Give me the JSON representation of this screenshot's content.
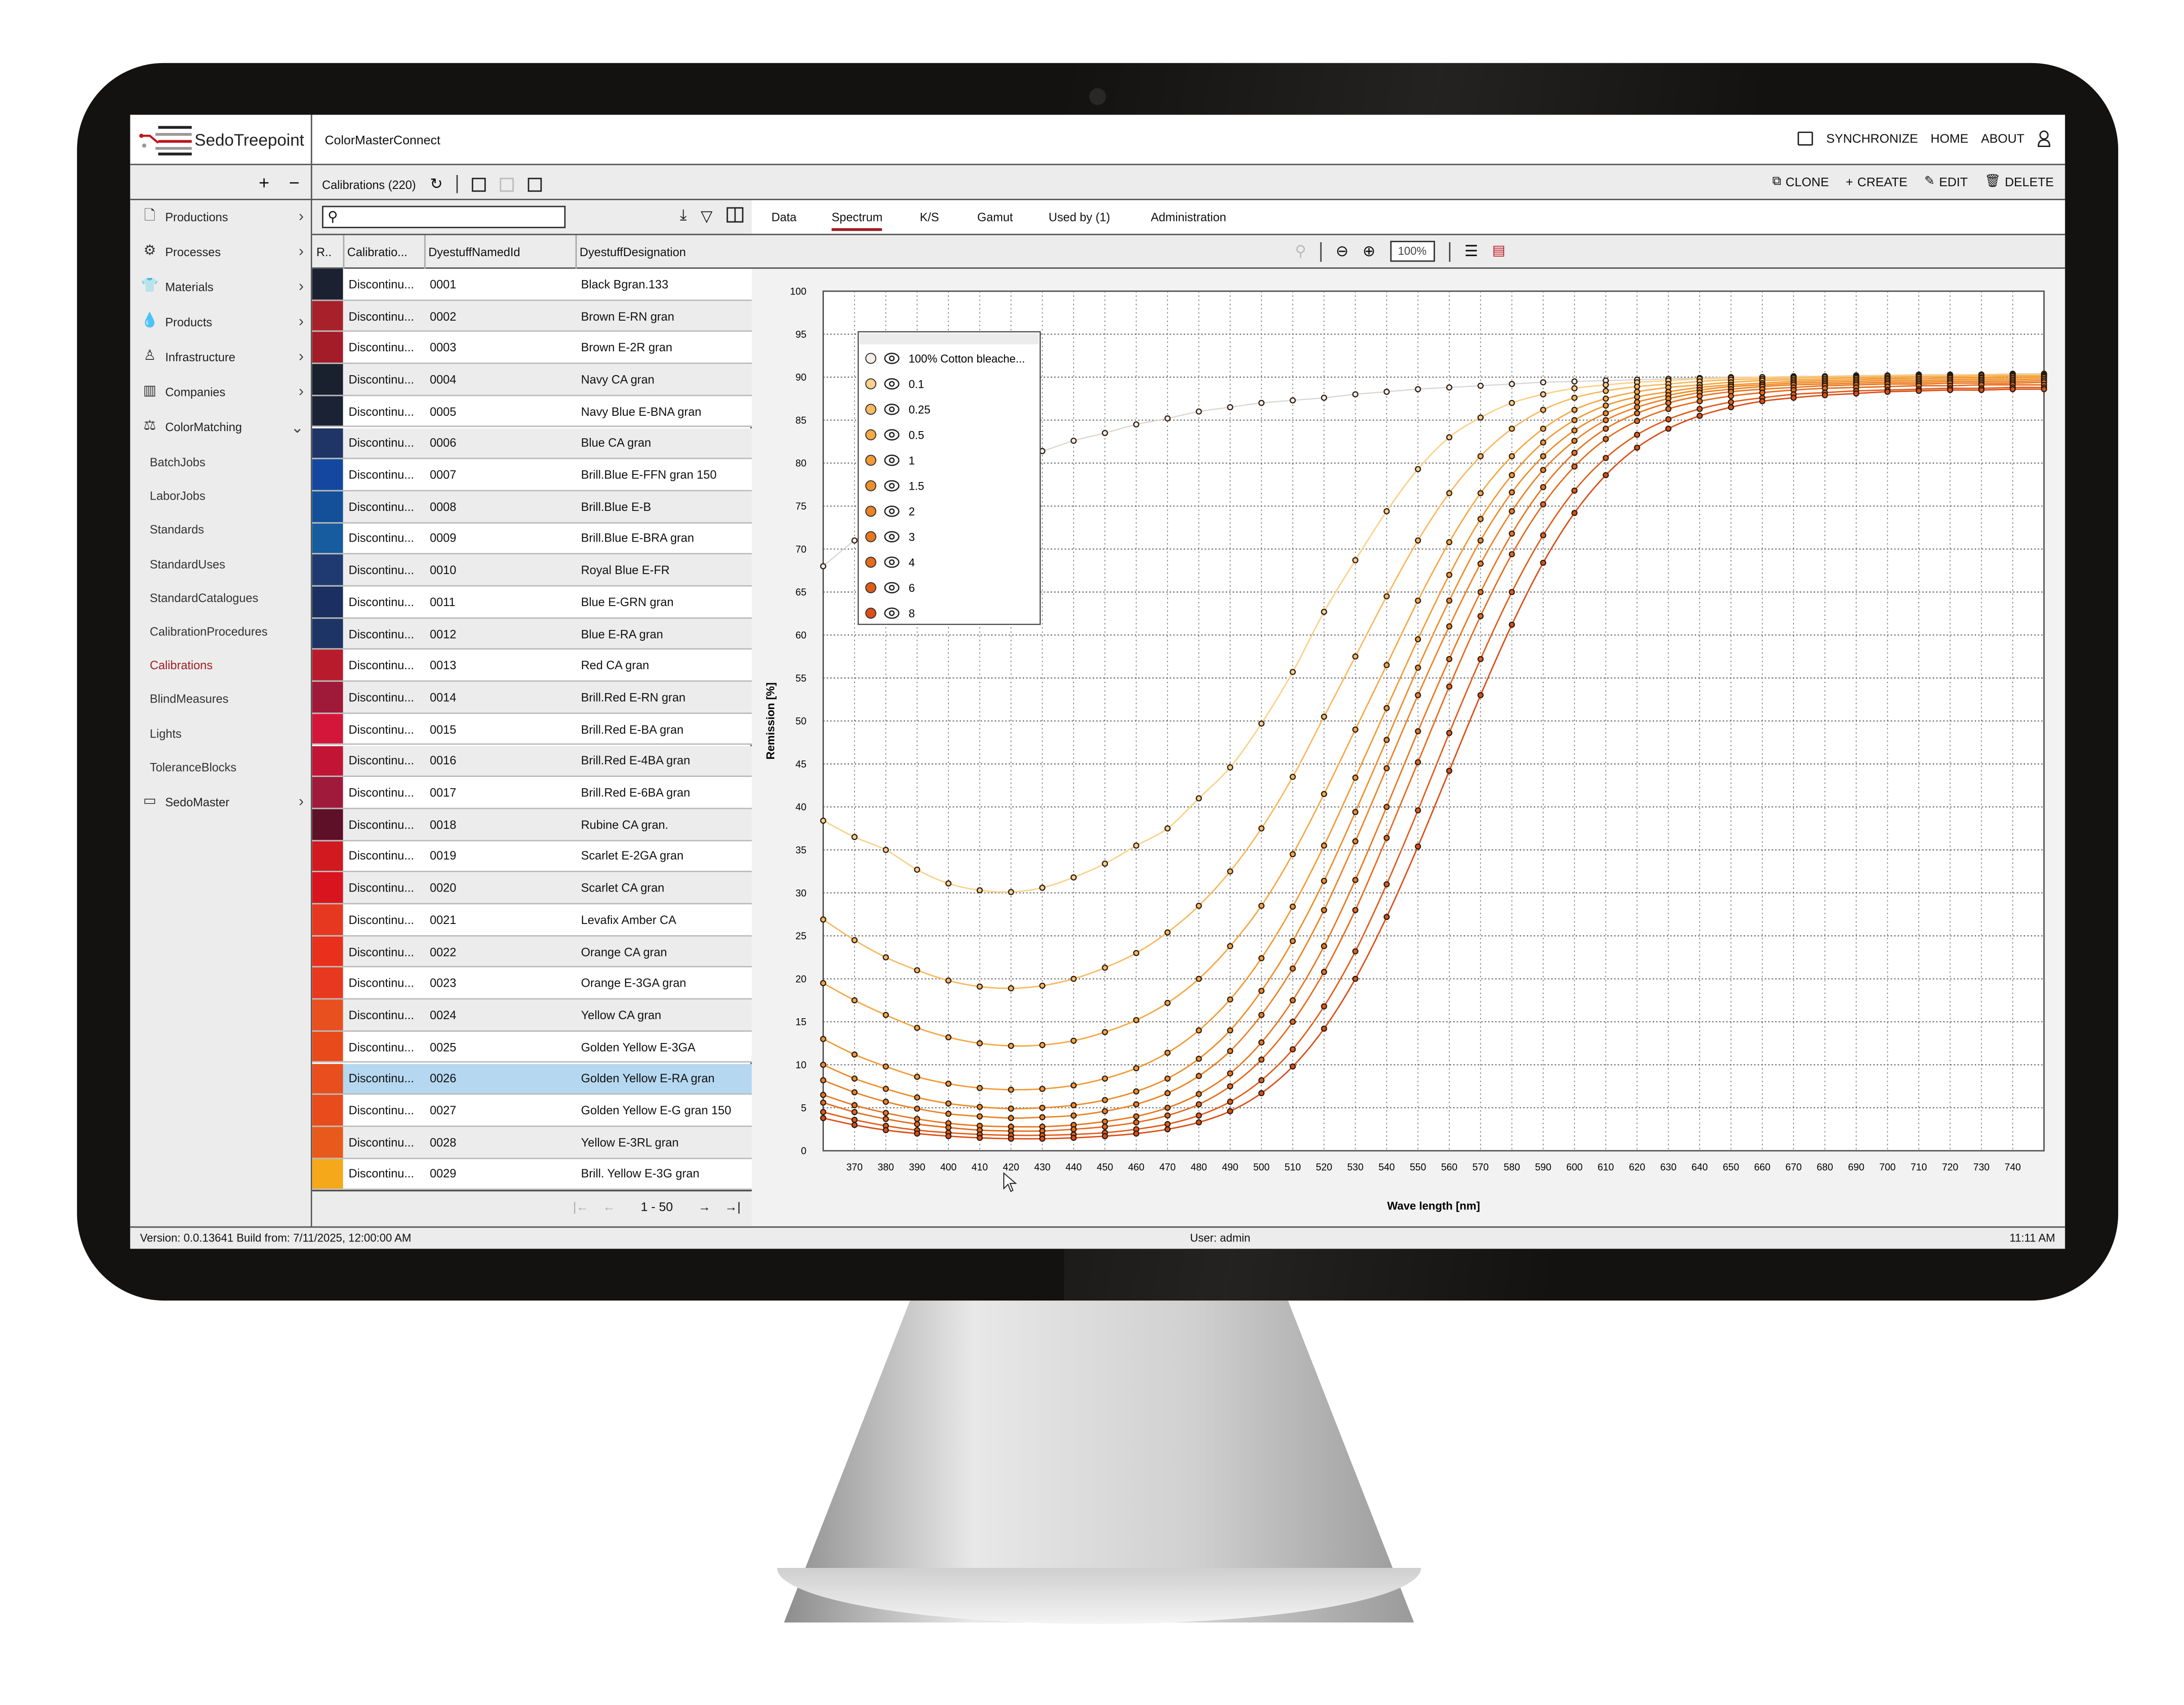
{
  "app": {
    "logo_text": "SedoTreepoint",
    "title": "ColorMasterConnect"
  },
  "header": {
    "synchronize": "SYNCHRONIZE",
    "home": "HOME",
    "about": "ABOUT"
  },
  "toolbar": {
    "list_title": "Calibrations (220)",
    "clone": "CLONE",
    "create": "CREATE",
    "edit": "EDIT",
    "delete": "DELETE"
  },
  "sidebar": {
    "items": [
      {
        "label": "Productions",
        "icon": "document-icon"
      },
      {
        "label": "Processes",
        "icon": "gear-icon"
      },
      {
        "label": "Materials",
        "icon": "shirt-icon"
      },
      {
        "label": "Products",
        "icon": "drop-icon"
      },
      {
        "label": "Infrastructure",
        "icon": "person-icon"
      },
      {
        "label": "Companies",
        "icon": "factory-icon"
      },
      {
        "label": "ColorMatching",
        "icon": "color-matching-icon",
        "expanded": true
      }
    ],
    "subitems": [
      "BatchJobs",
      "LaborJobs",
      "Standards",
      "StandardUses",
      "StandardCatalogues",
      "CalibrationProcedures",
      "Calibrations",
      "BlindMeasures",
      "Lights",
      "ToleranceBlocks"
    ],
    "active_subitem": "Calibrations",
    "last_item": {
      "label": "SedoMaster",
      "icon": "box-icon"
    }
  },
  "list": {
    "search_placeholder": "",
    "columns": [
      "R..",
      "Calibratio...",
      "DyestuffNamedId",
      "DyestuffDesignation"
    ],
    "rows": [
      {
        "status": "Discontinu...",
        "id": "0001",
        "designation": "Black Bgran.133",
        "color": "#1b2130"
      },
      {
        "status": "Discontinu...",
        "id": "0002",
        "designation": "Brown E-RN gran",
        "color": "#a8202a"
      },
      {
        "status": "Discontinu...",
        "id": "0003",
        "designation": "Brown E-2R gran",
        "color": "#a31c28"
      },
      {
        "status": "Discontinu...",
        "id": "0004",
        "designation": "Navy CA gran",
        "color": "#19202e"
      },
      {
        "status": "Discontinu...",
        "id": "0005",
        "designation": "Navy Blue E-BNA gran",
        "color": "#1a2233"
      },
      {
        "status": "Discontinu...",
        "id": "0006",
        "designation": "Blue CA gran",
        "color": "#1f3566"
      },
      {
        "status": "Discontinu...",
        "id": "0007",
        "designation": "Brill.Blue E-FFN gran 150",
        "color": "#1448a0"
      },
      {
        "status": "Discontinu...",
        "id": "0008",
        "designation": "Brill.Blue E-B",
        "color": "#14509a"
      },
      {
        "status": "Discontinu...",
        "id": "0009",
        "designation": "Brill.Blue E-BRA gran",
        "color": "#165c9e"
      },
      {
        "status": "Discontinu...",
        "id": "0010",
        "designation": "Royal Blue E-FR",
        "color": "#1f3a70"
      },
      {
        "status": "Discontinu...",
        "id": "0011",
        "designation": "Blue E-GRN gran",
        "color": "#1b3060"
      },
      {
        "status": "Discontinu...",
        "id": "0012",
        "designation": "Blue E-RA gran",
        "color": "#1c3565"
      },
      {
        "status": "Discontinu...",
        "id": "0013",
        "designation": "Red CA gran",
        "color": "#b81c2c"
      },
      {
        "status": "Discontinu...",
        "id": "0014",
        "designation": "Brill.Red E-RN gran",
        "color": "#9e1a38"
      },
      {
        "status": "Discontinu...",
        "id": "0015",
        "designation": "Brill.Red E-BA gran",
        "color": "#d4163a"
      },
      {
        "status": "Discontinu...",
        "id": "0016",
        "designation": "Brill.Red E-4BA gran",
        "color": "#c21434"
      },
      {
        "status": "Discontinu...",
        "id": "0017",
        "designation": "Brill.Red E-6BA gran",
        "color": "#a01a3c"
      },
      {
        "status": "Discontinu...",
        "id": "0018",
        "designation": "Rubine CA gran.",
        "color": "#5e1028"
      },
      {
        "status": "Discontinu...",
        "id": "0019",
        "designation": "Scarlet E-2GA gran",
        "color": "#d01a20"
      },
      {
        "status": "Discontinu...",
        "id": "0020",
        "designation": "Scarlet CA gran",
        "color": "#d8141e"
      },
      {
        "status": "Discontinu...",
        "id": "0021",
        "designation": "Levafix Amber CA",
        "color": "#e63820"
      },
      {
        "status": "Discontinu...",
        "id": "0022",
        "designation": "Orange CA gran",
        "color": "#e8301c"
      },
      {
        "status": "Discontinu...",
        "id": "0023",
        "designation": "Orange E-3GA gran",
        "color": "#e83820"
      },
      {
        "status": "Discontinu...",
        "id": "0024",
        "designation": "Yellow CA gran",
        "color": "#e85020"
      },
      {
        "status": "Discontinu...",
        "id": "0025",
        "designation": "Golden Yellow E-3GA",
        "color": "#e84a1c"
      },
      {
        "status": "Discontinu...",
        "id": "0026",
        "designation": "Golden Yellow E-RA gran",
        "color": "#e84e1e",
        "selected": true
      },
      {
        "status": "Discontinu...",
        "id": "0027",
        "designation": "Golden Yellow E-G gran 150",
        "color": "#e84c1c"
      },
      {
        "status": "Discontinu...",
        "id": "0028",
        "designation": "Yellow E-3RL gran",
        "color": "#e85a1c"
      },
      {
        "status": "Discontinu...",
        "id": "0029",
        "designation": "Brill. Yellow  E-3G gran",
        "color": "#f5a81a"
      }
    ],
    "pager": "1 - 50"
  },
  "detail": {
    "tabs": [
      "Data",
      "Spectrum",
      "K/S",
      "Gamut",
      "Used by  (1)",
      "Administration"
    ],
    "active_tab": "Spectrum",
    "zoom": "100%"
  },
  "status": {
    "version": "Version: 0.0.13641   Build from: 7/11/2025, 12:00:00 AM",
    "user": "User: admin",
    "time": "11:11 AM"
  },
  "colors": {
    "accent": "#a01c24",
    "selected_row": "#b5d8f0"
  },
  "chart_data": {
    "type": "line",
    "xlabel": "Wave length [nm]",
    "ylabel": "Remission [%]",
    "xlim": [
      360,
      750
    ],
    "ylim": [
      0,
      100
    ],
    "grid": true,
    "legend_placement": "top-left",
    "x_ticks": [
      370,
      380,
      390,
      400,
      410,
      420,
      430,
      440,
      450,
      460,
      470,
      480,
      490,
      500,
      510,
      520,
      530,
      540,
      550,
      560,
      570,
      580,
      590,
      600,
      610,
      620,
      630,
      640,
      650,
      660,
      670,
      680,
      690,
      700,
      710,
      720,
      730,
      740
    ],
    "y_ticks": [
      0,
      5,
      10,
      15,
      20,
      25,
      30,
      35,
      40,
      45,
      50,
      55,
      60,
      65,
      70,
      75,
      80,
      85,
      90,
      95,
      100
    ],
    "x": [
      360,
      370,
      380,
      390,
      400,
      410,
      420,
      430,
      440,
      450,
      460,
      470,
      480,
      490,
      500,
      510,
      520,
      530,
      540,
      550,
      560,
      570,
      580,
      590,
      600,
      610,
      620,
      630,
      640,
      650,
      660,
      670,
      680,
      690,
      700,
      710,
      720,
      730,
      740,
      750
    ],
    "series": [
      {
        "name": "100% Cotton bleache...",
        "color": "#f3eee9",
        "values": [
          68,
          71,
          73.5,
          76,
          78,
          79.5,
          80.5,
          81.4,
          82.6,
          83.5,
          84.5,
          85.2,
          86,
          86.5,
          87,
          87.3,
          87.6,
          88,
          88.3,
          88.6,
          88.8,
          89,
          89.2,
          89.4,
          89.5,
          89.6,
          89.7,
          89.8,
          89.9,
          90,
          90,
          90.1,
          90.1,
          90.2,
          90.2,
          90.3,
          90.3,
          90.3,
          90.4,
          90.4
        ]
      },
      {
        "name": "0.1",
        "color": "#fcd18a",
        "values": [
          38.4,
          36.5,
          35,
          32.7,
          31.1,
          30.3,
          30.1,
          30.6,
          31.8,
          33.4,
          35.5,
          37.5,
          41,
          44.6,
          49.7,
          55.7,
          62.7,
          68.7,
          74.4,
          79.3,
          83,
          85.3,
          87,
          88,
          88.7,
          89.1,
          89.4,
          89.6,
          89.8,
          89.9,
          90,
          90,
          90.1,
          90.1,
          90.2,
          90.2,
          90.2,
          90.3,
          90.3,
          90.3
        ]
      },
      {
        "name": "0.25",
        "color": "#f8b960",
        "values": [
          26.9,
          24.5,
          22.5,
          21,
          19.8,
          19.1,
          18.9,
          19.2,
          20,
          21.3,
          23,
          25.4,
          28.5,
          32.5,
          37.5,
          43.5,
          50.5,
          57.5,
          64.5,
          71,
          76.5,
          80.8,
          84,
          86.2,
          87.6,
          88.4,
          88.9,
          89.2,
          89.5,
          89.7,
          89.8,
          89.9,
          90,
          90,
          90.1,
          90.1,
          90.1,
          90.2,
          90.2,
          90.2
        ]
      },
      {
        "name": "0.5",
        "color": "#f5a844",
        "values": [
          19.5,
          17.5,
          15.8,
          14.3,
          13.2,
          12.5,
          12.2,
          12.3,
          12.8,
          13.8,
          15.2,
          17.2,
          20,
          23.8,
          28.5,
          34.5,
          41.5,
          49,
          56.5,
          64,
          70.8,
          76.5,
          80.8,
          84,
          86.2,
          87.5,
          88.3,
          88.8,
          89.1,
          89.4,
          89.6,
          89.7,
          89.8,
          89.9,
          89.9,
          90,
          90,
          90,
          90.1,
          90.1
        ]
      },
      {
        "name": "1",
        "color": "#f19a35",
        "values": [
          13,
          11.2,
          9.8,
          8.6,
          7.8,
          7.3,
          7.1,
          7.2,
          7.6,
          8.4,
          9.6,
          11.4,
          14,
          17.6,
          22.4,
          28.4,
          35.5,
          43.4,
          51.5,
          59.5,
          67,
          73.5,
          78.6,
          82.4,
          85,
          86.7,
          87.7,
          88.3,
          88.8,
          89.1,
          89.3,
          89.5,
          89.6,
          89.7,
          89.8,
          89.8,
          89.9,
          89.9,
          89.9,
          90
        ]
      },
      {
        "name": "1.5",
        "color": "#ee8d2a",
        "values": [
          10,
          8.4,
          7.2,
          6.2,
          5.5,
          5.1,
          4.9,
          5,
          5.3,
          5.9,
          6.9,
          8.4,
          10.7,
          14,
          18.6,
          24.4,
          31.4,
          39.4,
          47.8,
          56.2,
          64,
          71,
          76.6,
          80.8,
          83.8,
          85.8,
          87.1,
          87.9,
          88.5,
          88.9,
          89.1,
          89.3,
          89.4,
          89.5,
          89.6,
          89.6,
          89.7,
          89.7,
          89.7,
          89.8
        ]
      },
      {
        "name": "2",
        "color": "#ec8224",
        "values": [
          8.2,
          6.8,
          5.7,
          4.9,
          4.3,
          4,
          3.8,
          3.9,
          4.1,
          4.6,
          5.4,
          6.7,
          8.7,
          11.6,
          15.8,
          21.2,
          28,
          36,
          44.5,
          53,
          61,
          68.3,
          74.4,
          79.2,
          82.6,
          85,
          86.5,
          87.5,
          88.2,
          88.6,
          88.9,
          89.1,
          89.2,
          89.3,
          89.4,
          89.4,
          89.5,
          89.5,
          89.5,
          89.6
        ]
      },
      {
        "name": "3",
        "color": "#e8761f",
        "values": [
          6.5,
          5.3,
          4.4,
          3.7,
          3.2,
          2.9,
          2.8,
          2.8,
          3,
          3.4,
          4,
          5,
          6.6,
          9,
          12.6,
          17.5,
          23.8,
          31.5,
          40,
          48.8,
          57.2,
          65,
          71.8,
          77.2,
          81.2,
          84,
          85.8,
          87,
          87.8,
          88.3,
          88.6,
          88.8,
          89,
          89.1,
          89.2,
          89.2,
          89.3,
          89.3,
          89.3,
          89.4
        ]
      },
      {
        "name": "4",
        "color": "#e56a1c",
        "values": [
          5.6,
          4.5,
          3.7,
          3.1,
          2.7,
          2.4,
          2.3,
          2.3,
          2.5,
          2.8,
          3.3,
          4.1,
          5.4,
          7.5,
          10.6,
          15,
          20.8,
          28,
          36.4,
          45.2,
          54,
          62.2,
          69.4,
          75.2,
          79.6,
          82.8,
          84.9,
          86.3,
          87.2,
          87.8,
          88.2,
          88.5,
          88.7,
          88.8,
          88.9,
          89,
          89,
          89.1,
          89.1,
          89.1
        ]
      },
      {
        "name": "6",
        "color": "#e15c19",
        "values": [
          4.5,
          3.6,
          2.9,
          2.4,
          2.1,
          1.9,
          1.8,
          1.8,
          1.9,
          2.1,
          2.5,
          3.1,
          4.1,
          5.7,
          8.2,
          11.8,
          16.8,
          23.2,
          31,
          39.6,
          48.6,
          57.2,
          65,
          71.6,
          76.8,
          80.6,
          83.3,
          85.1,
          86.3,
          87.1,
          87.6,
          88,
          88.2,
          88.4,
          88.5,
          88.6,
          88.7,
          88.7,
          88.8,
          88.8
        ]
      },
      {
        "name": "8",
        "color": "#dc4e17",
        "values": [
          3.8,
          3,
          2.4,
          2,
          1.7,
          1.5,
          1.4,
          1.4,
          1.5,
          1.7,
          2,
          2.5,
          3.3,
          4.6,
          6.7,
          9.8,
          14.2,
          20,
          27.2,
          35.4,
          44.2,
          53,
          61.2,
          68.4,
          74.2,
          78.6,
          81.8,
          84,
          85.5,
          86.5,
          87.2,
          87.6,
          87.9,
          88.1,
          88.3,
          88.4,
          88.5,
          88.5,
          88.6,
          88.6
        ]
      }
    ]
  }
}
